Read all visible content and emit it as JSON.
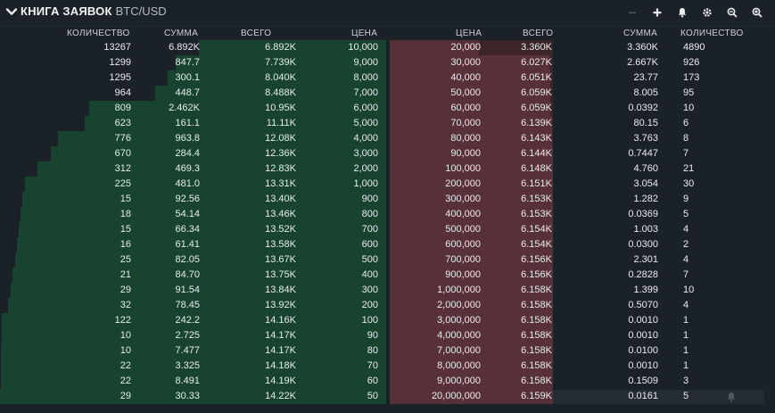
{
  "header": {
    "title": "КНИГА ЗАЯВОК",
    "pair": "BTC/USD",
    "icons": [
      "collapse-chevron-icon",
      "minus-icon",
      "plus-icon",
      "bell-icon",
      "gear-icon",
      "zoom-out-icon",
      "zoom-in-icon"
    ]
  },
  "columns": {
    "bid_qty": "КОЛИЧЕСТВО",
    "bid_sum": "СУММА",
    "bid_total": "ВСЕГО",
    "bid_price": "ЦЕНА",
    "ask_price": "ЦЕНА",
    "ask_total": "ВСЕГО",
    "ask_sum": "СУММА",
    "ask_qty": "КОЛИЧЕСТВО"
  },
  "bids": [
    {
      "qty": "13267",
      "sum": "6.892K",
      "total": "6.892K",
      "price": "10,000",
      "depth": 0.485
    },
    {
      "qty": "1299",
      "sum": "847.7",
      "total": "7.739K",
      "price": "9,000",
      "depth": 0.544
    },
    {
      "qty": "1295",
      "sum": "300.1",
      "total": "8.040K",
      "price": "8,000",
      "depth": 0.565
    },
    {
      "qty": "964",
      "sum": "448.7",
      "total": "8.488K",
      "price": "7,000",
      "depth": 0.597
    },
    {
      "qty": "809",
      "sum": "2.462K",
      "total": "10.95K",
      "price": "6,000",
      "depth": 0.77
    },
    {
      "qty": "623",
      "sum": "161.1",
      "total": "11.11K",
      "price": "5,000",
      "depth": 0.781
    },
    {
      "qty": "776",
      "sum": "963.8",
      "total": "12.08K",
      "price": "4,000",
      "depth": 0.849
    },
    {
      "qty": "670",
      "sum": "284.4",
      "total": "12.36K",
      "price": "3,000",
      "depth": 0.869
    },
    {
      "qty": "312",
      "sum": "469.3",
      "total": "12.83K",
      "price": "2,000",
      "depth": 0.902
    },
    {
      "qty": "225",
      "sum": "481.0",
      "total": "13.31K",
      "price": "1,000",
      "depth": 0.936
    },
    {
      "qty": "15",
      "sum": "92.56",
      "total": "13.40K",
      "price": "900",
      "depth": 0.942
    },
    {
      "qty": "18",
      "sum": "54.14",
      "total": "13.46K",
      "price": "800",
      "depth": 0.947
    },
    {
      "qty": "15",
      "sum": "66.34",
      "total": "13.52K",
      "price": "700",
      "depth": 0.951
    },
    {
      "qty": "16",
      "sum": "61.41",
      "total": "13.58K",
      "price": "600",
      "depth": 0.955
    },
    {
      "qty": "25",
      "sum": "82.05",
      "total": "13.67K",
      "price": "500",
      "depth": 0.961
    },
    {
      "qty": "21",
      "sum": "84.70",
      "total": "13.75K",
      "price": "400",
      "depth": 0.967
    },
    {
      "qty": "29",
      "sum": "91.54",
      "total": "13.84K",
      "price": "300",
      "depth": 0.973
    },
    {
      "qty": "32",
      "sum": "78.45",
      "total": "13.92K",
      "price": "200",
      "depth": 0.979
    },
    {
      "qty": "122",
      "sum": "242.2",
      "total": "14.16K",
      "price": "100",
      "depth": 0.996
    },
    {
      "qty": "10",
      "sum": "2.725",
      "total": "14.17K",
      "price": "90",
      "depth": 0.996
    },
    {
      "qty": "10",
      "sum": "7.477",
      "total": "14.17K",
      "price": "80",
      "depth": 0.997
    },
    {
      "qty": "22",
      "sum": "3.325",
      "total": "14.18K",
      "price": "70",
      "depth": 0.997
    },
    {
      "qty": "22",
      "sum": "8.491",
      "total": "14.19K",
      "price": "60",
      "depth": 0.998
    },
    {
      "qty": "29",
      "sum": "30.33",
      "total": "14.22K",
      "price": "50",
      "depth": 1.0
    }
  ],
  "asks": [
    {
      "price": "20,000",
      "total": "3.360K",
      "sum": "3.360K",
      "qty": "4890",
      "depth": 0.546
    },
    {
      "price": "30,000",
      "total": "6.027K",
      "sum": "2.667K",
      "qty": "926",
      "depth": 0.979
    },
    {
      "price": "40,000",
      "total": "6.051K",
      "sum": "23.77",
      "qty": "173",
      "depth": 0.983
    },
    {
      "price": "50,000",
      "total": "6.059K",
      "sum": "8.005",
      "qty": "95",
      "depth": 0.984
    },
    {
      "price": "60,000",
      "total": "6.059K",
      "sum": "0.0392",
      "qty": "10",
      "depth": 0.984
    },
    {
      "price": "70,000",
      "total": "6.139K",
      "sum": "80.15",
      "qty": "6",
      "depth": 0.997
    },
    {
      "price": "80,000",
      "total": "6.143K",
      "sum": "3.763",
      "qty": "8",
      "depth": 0.997
    },
    {
      "price": "90,000",
      "total": "6.144K",
      "sum": "0.7447",
      "qty": "7",
      "depth": 0.998
    },
    {
      "price": "100,000",
      "total": "6.148K",
      "sum": "4.760",
      "qty": "21",
      "depth": 0.998
    },
    {
      "price": "200,000",
      "total": "6.151K",
      "sum": "3.054",
      "qty": "30",
      "depth": 0.999
    },
    {
      "price": "300,000",
      "total": "6.153K",
      "sum": "1.282",
      "qty": "9",
      "depth": 0.999
    },
    {
      "price": "400,000",
      "total": "6.153K",
      "sum": "0.0369",
      "qty": "5",
      "depth": 0.999
    },
    {
      "price": "500,000",
      "total": "6.154K",
      "sum": "1.003",
      "qty": "4",
      "depth": 0.999
    },
    {
      "price": "600,000",
      "total": "6.154K",
      "sum": "0.0300",
      "qty": "2",
      "depth": 0.999
    },
    {
      "price": "700,000",
      "total": "6.156K",
      "sum": "2.301",
      "qty": "4",
      "depth": 0.999
    },
    {
      "price": "900,000",
      "total": "6.156K",
      "sum": "0.2828",
      "qty": "7",
      "depth": 0.999
    },
    {
      "price": "1,000,000",
      "total": "6.158K",
      "sum": "1.399",
      "qty": "10",
      "depth": 1.0
    },
    {
      "price": "2,000,000",
      "total": "6.158K",
      "sum": "0.5070",
      "qty": "4",
      "depth": 1.0
    },
    {
      "price": "3,000,000",
      "total": "6.158K",
      "sum": "0.0010",
      "qty": "1",
      "depth": 1.0
    },
    {
      "price": "4,000,000",
      "total": "6.158K",
      "sum": "0.0010",
      "qty": "1",
      "depth": 1.0
    },
    {
      "price": "7,000,000",
      "total": "6.158K",
      "sum": "0.0100",
      "qty": "1",
      "depth": 1.0
    },
    {
      "price": "8,000,000",
      "total": "6.158K",
      "sum": "0.0010",
      "qty": "1",
      "depth": 1.0
    },
    {
      "price": "9,000,000",
      "total": "6.158K",
      "sum": "0.1509",
      "qty": "3",
      "depth": 1.0
    },
    {
      "price": "20,000,000",
      "total": "6.159K",
      "sum": "0.0161",
      "qty": "5",
      "depth": 1.0
    }
  ],
  "colors": {
    "background": "#1b2227",
    "bid_fill": "#17432f",
    "ask_fill": "#583037",
    "text": "#e8ecef"
  }
}
